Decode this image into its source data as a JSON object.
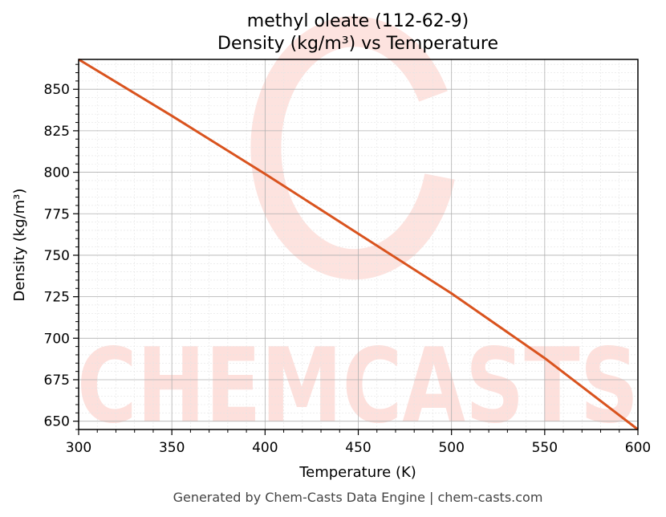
{
  "chart_data": {
    "type": "line",
    "title_line1": "methyl oleate (112-62-9)",
    "title_line2": "Density (kg/m³) vs Temperature",
    "xlabel": "Temperature (K)",
    "ylabel": "Density (kg/m³)",
    "xlim": [
      300,
      600
    ],
    "ylim": [
      645,
      868
    ],
    "x_ticks": [
      300,
      350,
      400,
      450,
      500,
      550,
      600
    ],
    "y_ticks": [
      650,
      675,
      700,
      725,
      750,
      775,
      800,
      825,
      850
    ],
    "grid": true,
    "series": [
      {
        "color": "#d9531e",
        "x": [
          300,
          350,
          400,
          450,
          500,
          550,
          600
        ],
        "y": [
          868,
          834,
          799,
          763,
          727,
          688,
          645
        ]
      }
    ]
  },
  "footer": "Generated by Chem-Casts Data Engine | chem-casts.com",
  "watermark": {
    "text": "CHEMCASTS",
    "color": "#fde0dc"
  }
}
